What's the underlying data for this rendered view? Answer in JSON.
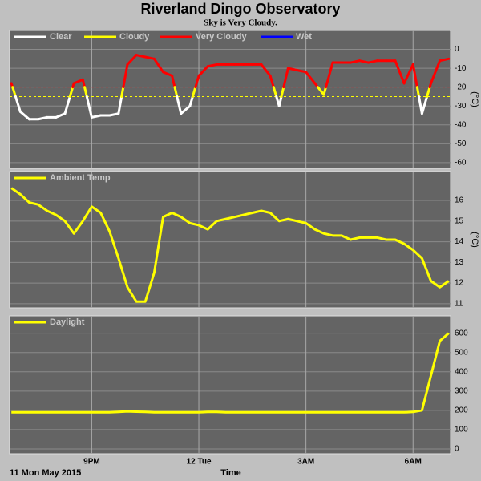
{
  "chart_data": [
    {
      "type": "colored-line",
      "title": "Riverland Dingo Observatory",
      "subtitle": "Sky is Very Cloudy.",
      "ylabel": "(°C)",
      "x": [
        18.75,
        19,
        19.25,
        19.5,
        19.75,
        20,
        20.25,
        20.5,
        20.75,
        21,
        21.25,
        21.5,
        21.75,
        22,
        22.25,
        22.5,
        22.75,
        23,
        23.25,
        23.5,
        23.75,
        24,
        24.25,
        24.5,
        24.75,
        25,
        25.25,
        25.5,
        25.75,
        26,
        26.25,
        26.5,
        26.75,
        27,
        27.25,
        27.5,
        27.75,
        28,
        28.25,
        28.5,
        28.75,
        29,
        29.25,
        29.5,
        29.75,
        30,
        30.25,
        30.5,
        30.75,
        31
      ],
      "values": [
        -18,
        -33,
        -37,
        -37,
        -36,
        -36,
        -34,
        -18,
        -16,
        -36,
        -35,
        -35,
        -34,
        -8,
        -3,
        -4,
        -5,
        -12,
        -14,
        -34,
        -30,
        -14,
        -9,
        -8,
        -8,
        -8,
        -8,
        -8,
        -8,
        -14,
        -30,
        -10,
        -11,
        -12,
        -18,
        -24,
        -7,
        -7,
        -7,
        -6,
        -7,
        -6,
        -6,
        -6,
        -18,
        -8,
        -34,
        -18,
        -6,
        -5
      ],
      "legend": [
        {
          "name": "Clear",
          "color": "#ffffff"
        },
        {
          "name": "Cloudy",
          "color": "#ffff00"
        },
        {
          "name": "Very Cloudy",
          "color": "#ff0000"
        },
        {
          "name": "Wet",
          "color": "#0000ff"
        }
      ],
      "thresholds": [
        {
          "value": -20,
          "color": "#ff0000"
        },
        {
          "value": -25,
          "color": "#ffff00"
        }
      ],
      "xlim": [
        18.7,
        31.05
      ],
      "xticks": [
        21,
        24,
        27,
        30
      ],
      "ylim": [
        -63,
        10
      ],
      "yticks": [
        0,
        -10,
        -20,
        -30,
        -40,
        -50,
        -60
      ],
      "grid": true
    },
    {
      "type": "line",
      "ylabel": "(°C)",
      "x": [
        18.75,
        19,
        19.25,
        19.5,
        19.75,
        20,
        20.25,
        20.5,
        20.75,
        21,
        21.25,
        21.5,
        21.75,
        22,
        22.25,
        22.5,
        22.75,
        23,
        23.25,
        23.5,
        23.75,
        24,
        24.25,
        24.5,
        24.75,
        25,
        25.25,
        25.5,
        25.75,
        26,
        26.25,
        26.5,
        26.75,
        27,
        27.25,
        27.5,
        27.75,
        28,
        28.25,
        28.5,
        28.75,
        29,
        29.25,
        29.5,
        29.75,
        30,
        30.25,
        30.5,
        30.75,
        31
      ],
      "series": [
        {
          "name": "Ambient Temp",
          "color": "#ffff00",
          "values": [
            16.6,
            16.3,
            15.9,
            15.8,
            15.5,
            15.3,
            15.0,
            14.4,
            15.0,
            15.7,
            15.4,
            14.5,
            13.2,
            11.8,
            11.1,
            11.1,
            12.5,
            15.2,
            15.4,
            15.2,
            14.9,
            14.8,
            14.6,
            15.0,
            15.1,
            15.2,
            15.3,
            15.4,
            15.5,
            15.4,
            15.0,
            15.1,
            15.0,
            14.9,
            14.6,
            14.4,
            14.3,
            14.3,
            14.1,
            14.2,
            14.2,
            14.2,
            14.1,
            14.1,
            13.9,
            13.6,
            13.2,
            12.1,
            11.8,
            12.1
          ]
        }
      ],
      "xlim": [
        18.7,
        31.05
      ],
      "xticks": [
        21,
        24,
        27,
        30
      ],
      "ylim": [
        10.8,
        17.4
      ],
      "yticks": [
        11,
        12,
        13,
        14,
        15,
        16
      ],
      "grid": true
    },
    {
      "type": "line",
      "xlabel": "Time",
      "date_label": "11 Mon May 2015",
      "x": [
        18.75,
        19,
        19.25,
        19.5,
        19.75,
        20,
        20.25,
        20.5,
        20.75,
        21,
        21.25,
        21.5,
        21.75,
        22,
        22.25,
        22.5,
        22.75,
        23,
        23.25,
        23.5,
        23.75,
        24,
        24.25,
        24.5,
        24.75,
        25,
        25.25,
        25.5,
        25.75,
        26,
        26.25,
        26.5,
        26.75,
        27,
        27.25,
        27.5,
        27.75,
        28,
        28.25,
        28.5,
        28.75,
        29,
        29.25,
        29.5,
        29.75,
        30,
        30.25,
        30.5,
        30.75,
        31
      ],
      "series": [
        {
          "name": "Daylight",
          "color": "#ffff00",
          "values": [
            190,
            190,
            190,
            190,
            190,
            190,
            190,
            190,
            190,
            190,
            190,
            190,
            192,
            195,
            193,
            192,
            190,
            190,
            190,
            190,
            190,
            190,
            192,
            192,
            190,
            190,
            190,
            190,
            190,
            190,
            190,
            190,
            190,
            190,
            190,
            190,
            190,
            190,
            190,
            190,
            190,
            190,
            190,
            190,
            190,
            192,
            200,
            380,
            560,
            600
          ]
        }
      ],
      "xlim": [
        18.7,
        31.05
      ],
      "xticks": [
        {
          "value": 21,
          "label": "9PM"
        },
        {
          "value": 24,
          "label": "12 Tue"
        },
        {
          "value": 27,
          "label": "3AM"
        },
        {
          "value": 30,
          "label": "6AM"
        }
      ],
      "ylim": [
        -25,
        690
      ],
      "yticks": [
        0,
        100,
        200,
        300,
        400,
        500,
        600
      ],
      "grid": true
    }
  ]
}
